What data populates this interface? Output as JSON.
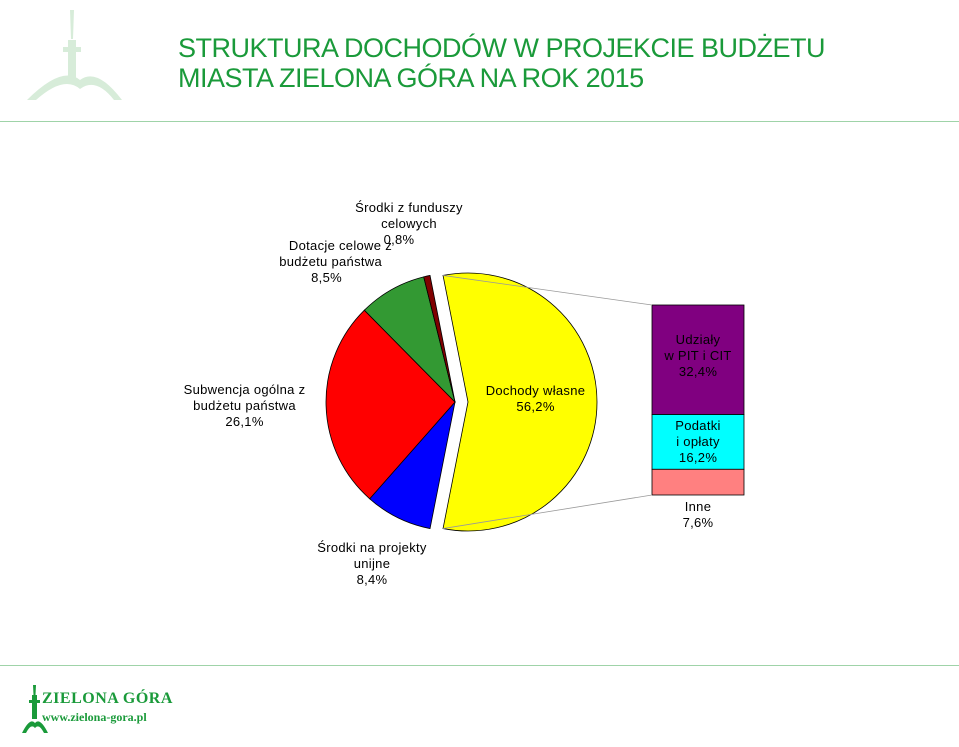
{
  "header": {
    "title_line1": "STRUKTURA DOCHODÓW W PROJEKCIE BUDŻETU",
    "title_line2": "MIASTA ZIELONA GÓRA NA ROK 2015"
  },
  "footer": {
    "brand": "ZIELONA GÓRA",
    "url": "www.zielona-gora.pl"
  },
  "colors": {
    "title": "#1a9a3a",
    "own_revenue": "#ffff00",
    "eu_projects": "#0000ff",
    "general_subsidy": "#ff0000",
    "targeted_grants": "#339933",
    "special_funds": "#800000",
    "pit_cit": "#800080",
    "taxes_fees": "#00ffff",
    "other": "#ff8080"
  },
  "chart_data": {
    "type": "pie",
    "pie": [
      {
        "label_lines": [
          "Dochody własne",
          "56,2%"
        ],
        "value": 56.2
      },
      {
        "label_lines": [
          "Środki na projekty",
          "unijne",
          "8,4%"
        ],
        "value": 8.4
      },
      {
        "label_lines": [
          "Subwencja ogólna z",
          "budżetu państwa",
          "26,1%"
        ],
        "value": 26.1
      },
      {
        "label_lines": [
          "Dotacje celowe z",
          "budżetu państwa",
          "8,5%"
        ],
        "value": 8.5
      },
      {
        "label_lines": [
          "Środki z funduszy",
          "celowych",
          "0,8%"
        ],
        "value": 0.8
      }
    ],
    "breakdown_of": "Dochody własne",
    "bar": [
      {
        "label_lines": [
          "Udziały",
          "w PIT i CIT",
          "32,4%"
        ],
        "value": 32.4
      },
      {
        "label_lines": [
          "Podatki",
          "i opłaty",
          "16,2%"
        ],
        "value": 16.2
      },
      {
        "label_lines": [
          "Inne",
          "7,6%"
        ],
        "value": 7.6
      }
    ]
  }
}
